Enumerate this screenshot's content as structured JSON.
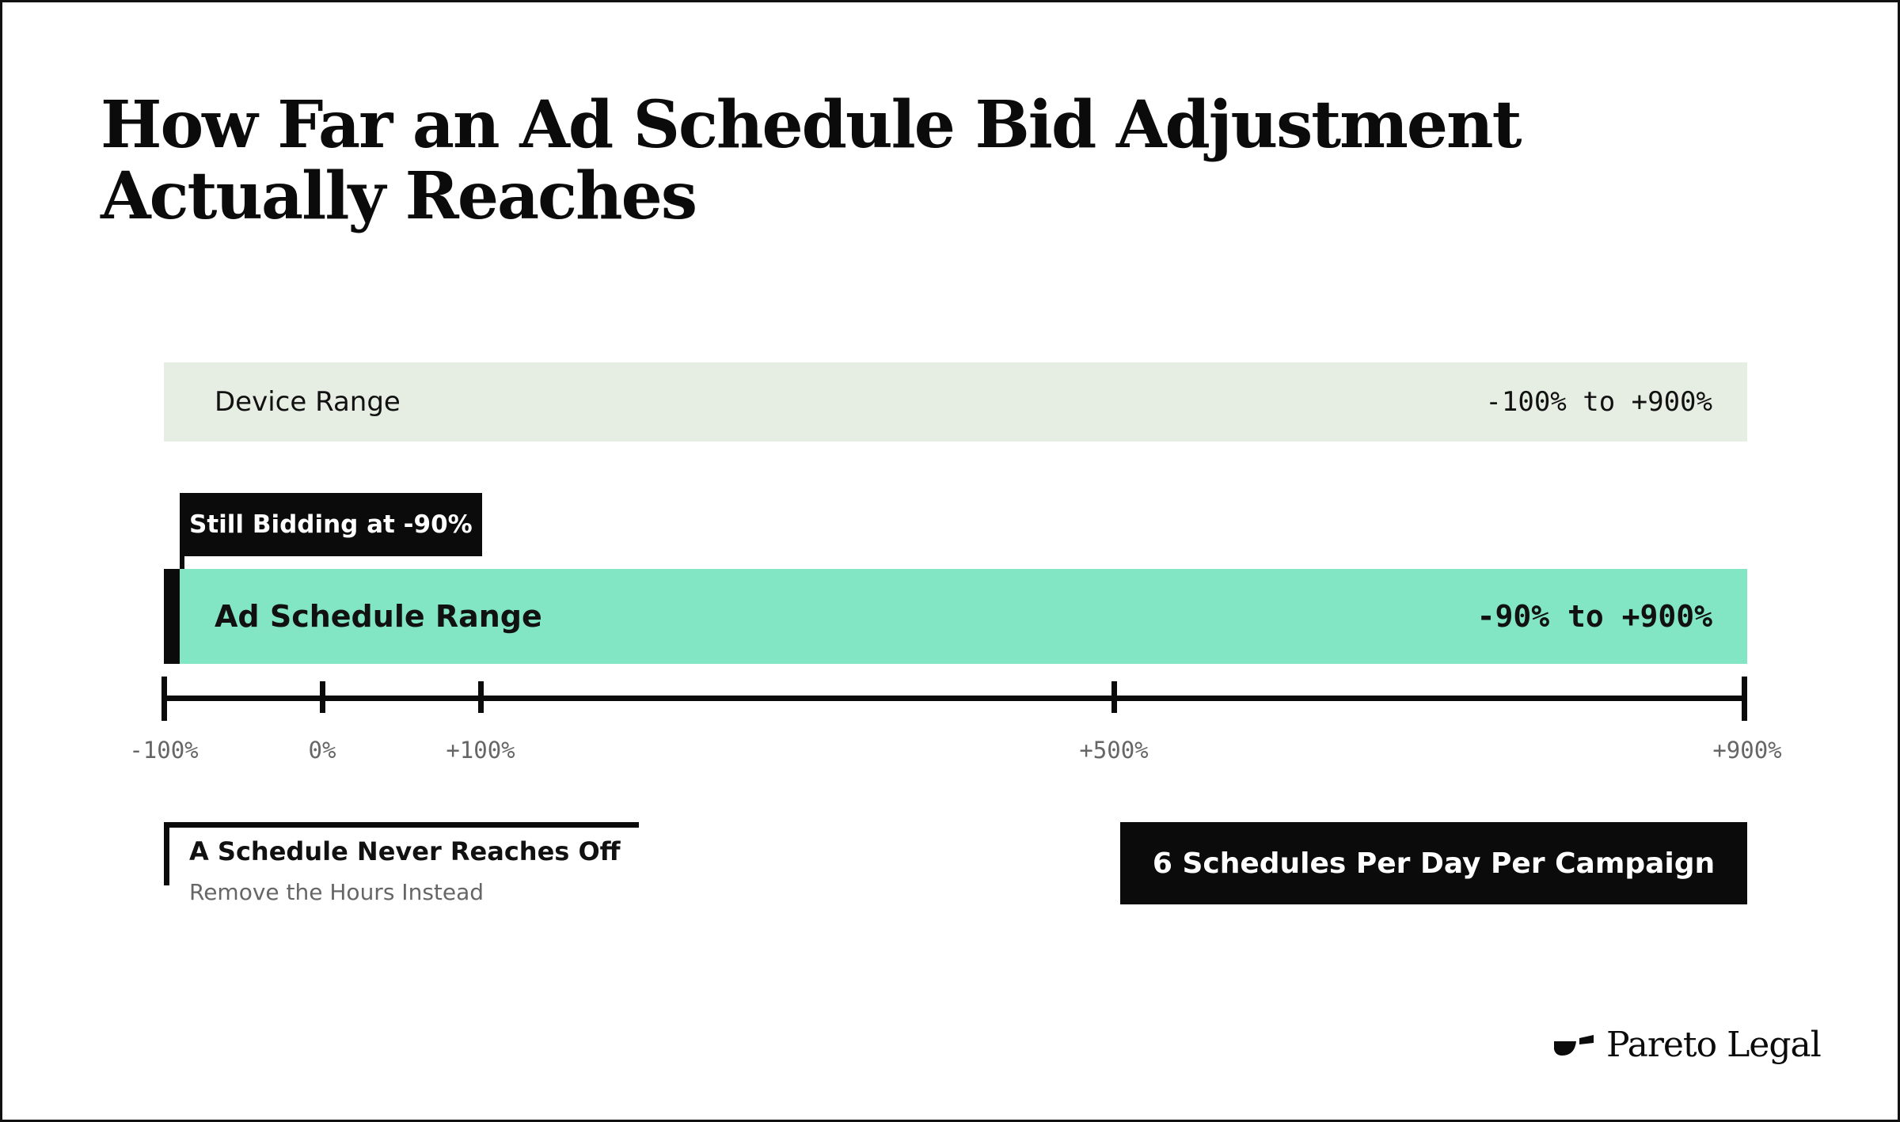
{
  "title": "How Far an Ad Schedule Bid Adjustment Actually Reaches",
  "device_range": {
    "label": "Device Range",
    "value": "-100% to +900%",
    "min": -100,
    "max": 900
  },
  "schedule_range": {
    "label": "Ad Schedule Range",
    "value": "-90% to +900%",
    "min": -90,
    "max": 900
  },
  "callout": {
    "label": "Still Bidding at -90%",
    "at": -90
  },
  "axis": {
    "min": -100,
    "max": 900,
    "ticks": [
      {
        "value": -100,
        "label": "-100%"
      },
      {
        "value": 0,
        "label": "0%"
      },
      {
        "value": 100,
        "label": "+100%"
      },
      {
        "value": 500,
        "label": "+500%"
      },
      {
        "value": 900,
        "label": "+900%"
      }
    ]
  },
  "note_left": {
    "title": "A Schedule Never Reaches Off",
    "subtitle": "Remove the Hours Instead"
  },
  "note_right": {
    "label": "6 Schedules Per Day Per Campaign"
  },
  "logo": {
    "name": "Pareto Legal",
    "icon": "pareto-legal-mark-icon"
  },
  "colors": {
    "device_band": "#e6eee3",
    "schedule_band": "#82e5c3",
    "ink": "#0b0b0b",
    "muted": "#666666"
  }
}
